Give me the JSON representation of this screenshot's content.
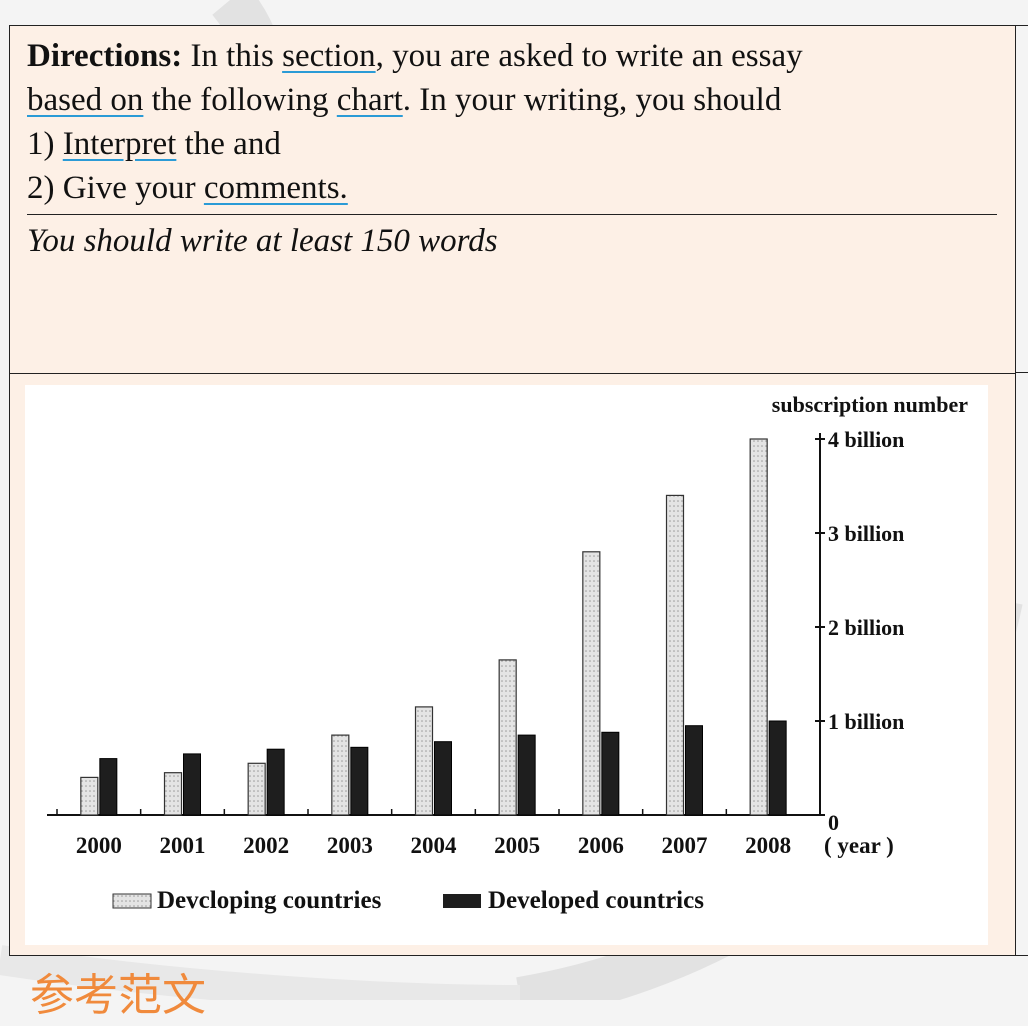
{
  "directions": {
    "label": "Directions:",
    "p1": {
      "t1": " In this ",
      "u1": "section",
      "t2": ", you are asked to write an essay"
    },
    "p2": {
      "u1": "based on",
      "t1": " the following ",
      "u2": "chart",
      "t2": ". In your writing, you should"
    },
    "p3": {
      "t1": "1) ",
      "u1": "Interpret",
      "t2": " the and"
    },
    "p4": {
      "t1": "2) Give your ",
      "u1": "comments."
    },
    "note": "You should write at least 150 words"
  },
  "chart_data": {
    "type": "bar",
    "categories": [
      "2000",
      "2001",
      "2002",
      "2003",
      "2004",
      "2005",
      "2006",
      "2007",
      "2008"
    ],
    "series": [
      {
        "name": "Devcloping countries",
        "values": [
          0.4,
          0.45,
          0.55,
          0.85,
          1.15,
          1.65,
          2.8,
          3.4,
          4.0
        ]
      },
      {
        "name": "Developed countrics",
        "values": [
          0.6,
          0.65,
          0.7,
          0.72,
          0.78,
          0.85,
          0.88,
          0.95,
          1.0
        ]
      }
    ],
    "ylabel": "subscription number",
    "xlabel": "( year )",
    "ylim": [
      0,
      4
    ],
    "yticks": [
      {
        "value": 0,
        "label": "0"
      },
      {
        "value": 1,
        "label": "1 billion"
      },
      {
        "value": 2,
        "label": "2 billion"
      },
      {
        "value": 3,
        "label": "3 billion"
      },
      {
        "value": 4,
        "label": "4 billion"
      }
    ],
    "y_axis_position": "right",
    "legend_position": "bottom",
    "colors": {
      "developing": "#e4e4e4",
      "developed": "#1e1e1e"
    }
  },
  "footer": {
    "title": "参考范文"
  }
}
